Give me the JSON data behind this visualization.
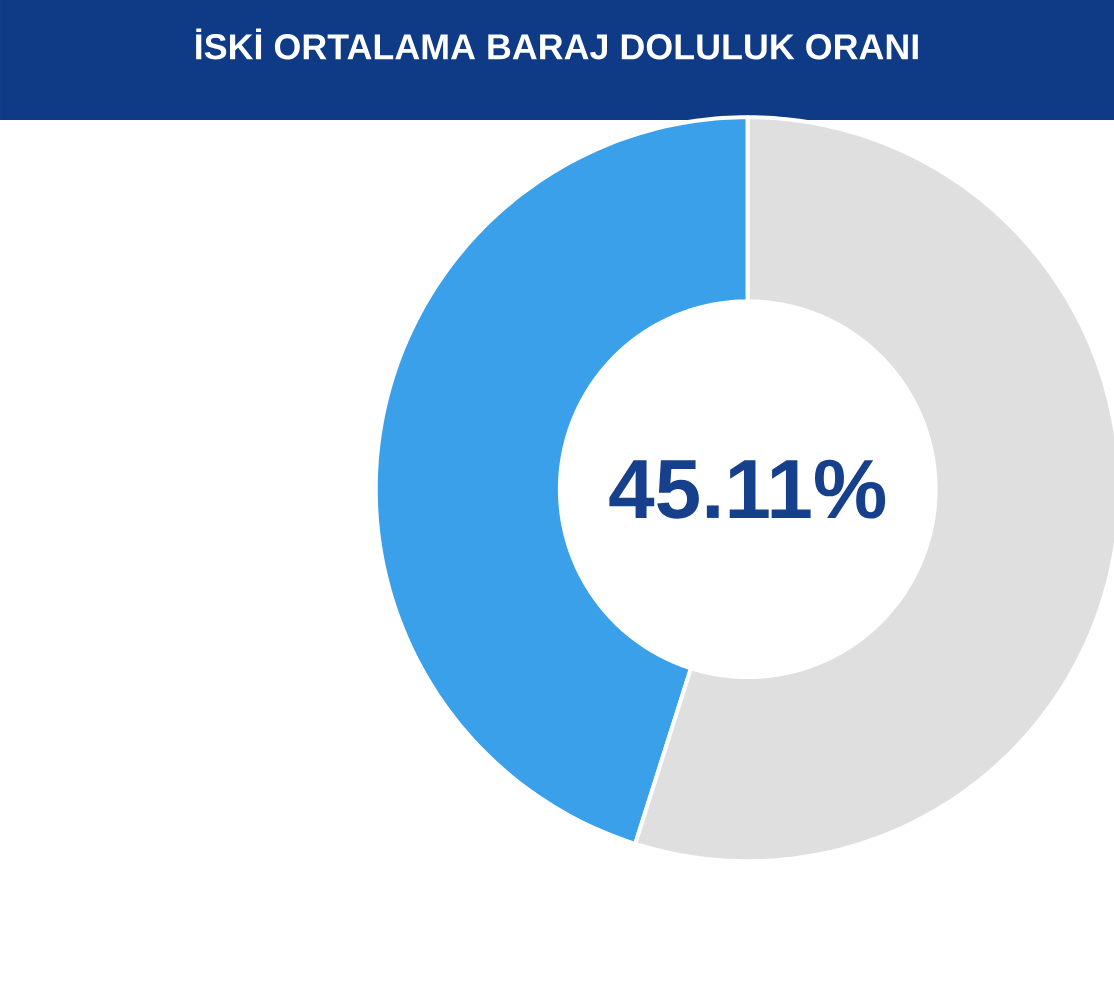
{
  "chart_data": {
    "type": "donut",
    "title": "İSKİ ORTALAMA BARAJ DOLULUK ORANI",
    "categories": [
      null,
      null
    ],
    "values": [
      45.11,
      54.89
    ],
    "colors": [
      "#3aa0e9",
      "#dfdfdf"
    ],
    "value_labels": [
      "45.11%",
      null
    ]
  }
}
